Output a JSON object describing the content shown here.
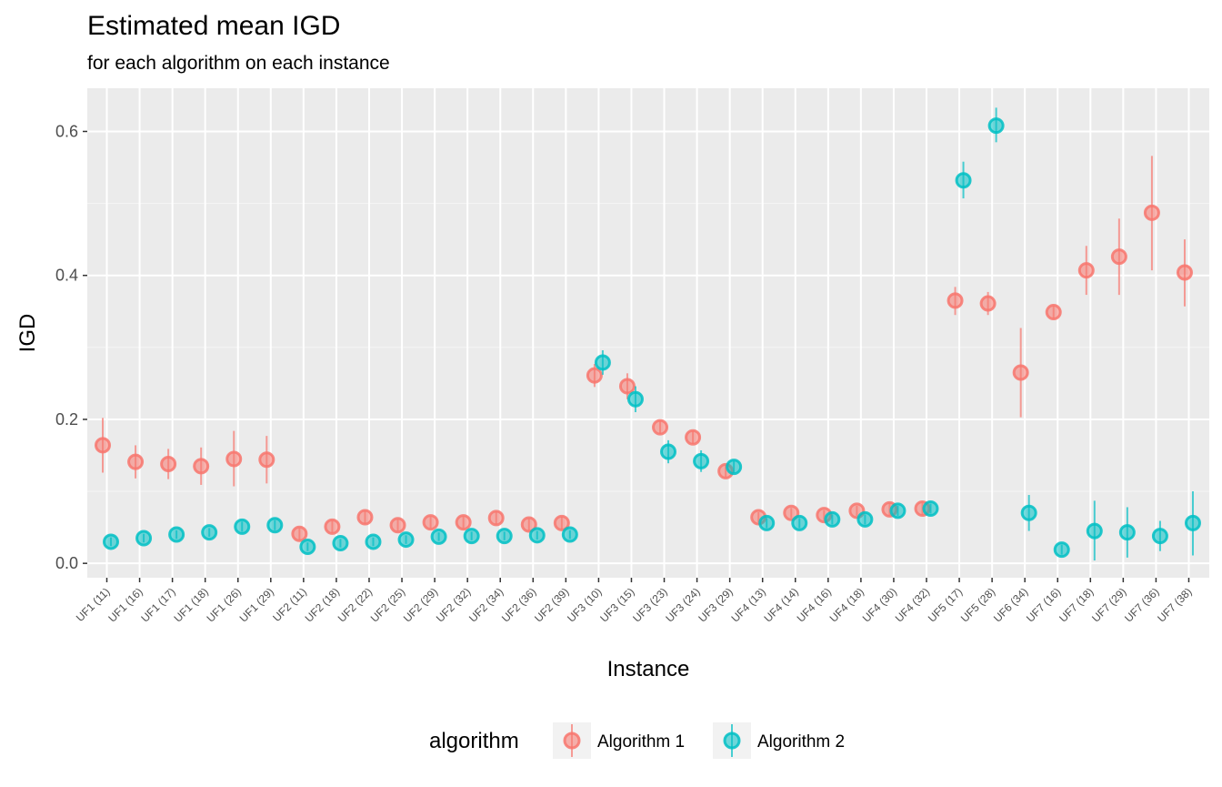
{
  "chart_data": {
    "type": "scatter",
    "title": "Estimated mean IGD",
    "subtitle": "for each algorithm on each instance",
    "xlabel": "Instance",
    "ylabel": "IGD",
    "ylim": [
      -0.02,
      0.66
    ],
    "yticks": [
      0.0,
      0.2,
      0.4,
      0.6
    ],
    "ytick_labels": [
      "0.0",
      "0.2",
      "0.4",
      "0.6"
    ],
    "grid": true,
    "legend": {
      "title": "algorithm",
      "position": "bottom"
    },
    "categories": [
      "UF1 (11)",
      "UF1 (16)",
      "UF1 (17)",
      "UF1 (18)",
      "UF1 (26)",
      "UF1 (29)",
      "UF2 (11)",
      "UF2 (18)",
      "UF2 (22)",
      "UF2 (25)",
      "UF2 (29)",
      "UF2 (32)",
      "UF2 (34)",
      "UF2 (36)",
      "UF2 (39)",
      "UF3 (10)",
      "UF3 (15)",
      "UF3 (23)",
      "UF3 (24)",
      "UF3 (29)",
      "UF4 (13)",
      "UF4 (14)",
      "UF4 (16)",
      "UF4 (18)",
      "UF4 (30)",
      "UF4 (32)",
      "UF5 (17)",
      "UF5 (28)",
      "UF6 (34)",
      "UF7 (16)",
      "UF7 (18)",
      "UF7 (29)",
      "UF7 (36)",
      "UF7 (38)"
    ],
    "series": [
      {
        "name": "Algorithm 1",
        "color": "#F8766D",
        "values": [
          0.164,
          0.141,
          0.138,
          0.135,
          0.145,
          0.144,
          0.041,
          0.051,
          0.064,
          0.053,
          0.057,
          0.057,
          0.063,
          0.054,
          0.056,
          0.261,
          0.246,
          0.189,
          0.175,
          0.128,
          0.064,
          0.07,
          0.067,
          0.073,
          0.075,
          0.076,
          0.365,
          0.361,
          0.265,
          0.349,
          0.407,
          0.426,
          0.487,
          0.404
        ],
        "lower": [
          0.126,
          0.118,
          0.117,
          0.109,
          0.107,
          0.111,
          0.033,
          0.043,
          0.055,
          0.045,
          0.049,
          0.049,
          0.054,
          0.046,
          0.047,
          0.245,
          0.228,
          0.18,
          0.166,
          0.12,
          0.057,
          0.063,
          0.06,
          0.066,
          0.067,
          0.068,
          0.345,
          0.345,
          0.203,
          0.34,
          0.373,
          0.373,
          0.407,
          0.357
        ],
        "upper": [
          0.202,
          0.164,
          0.159,
          0.161,
          0.184,
          0.177,
          0.049,
          0.059,
          0.073,
          0.061,
          0.065,
          0.065,
          0.072,
          0.062,
          0.065,
          0.277,
          0.264,
          0.198,
          0.184,
          0.136,
          0.071,
          0.077,
          0.074,
          0.08,
          0.083,
          0.084,
          0.384,
          0.377,
          0.327,
          0.358,
          0.441,
          0.479,
          0.566,
          0.45
        ]
      },
      {
        "name": "Algorithm 2",
        "color": "#00BFC4",
        "values": [
          0.03,
          0.035,
          0.04,
          0.043,
          0.051,
          0.053,
          0.023,
          0.028,
          0.03,
          0.033,
          0.037,
          0.038,
          0.038,
          0.039,
          0.04,
          0.279,
          0.228,
          0.155,
          0.142,
          0.134,
          0.056,
          0.056,
          0.061,
          0.061,
          0.073,
          0.076,
          0.532,
          0.608,
          0.07,
          0.019,
          0.045,
          0.043,
          0.038,
          0.056
        ],
        "lower": [
          0.024,
          0.029,
          0.034,
          0.037,
          0.044,
          0.046,
          0.017,
          0.022,
          0.024,
          0.027,
          0.031,
          0.032,
          0.032,
          0.033,
          0.034,
          0.262,
          0.21,
          0.139,
          0.127,
          0.126,
          0.049,
          0.049,
          0.054,
          0.054,
          0.066,
          0.069,
          0.507,
          0.585,
          0.045,
          0.012,
          0.004,
          0.008,
          0.017,
          0.011
        ],
        "upper": [
          0.036,
          0.041,
          0.046,
          0.049,
          0.058,
          0.06,
          0.029,
          0.034,
          0.036,
          0.039,
          0.043,
          0.044,
          0.044,
          0.045,
          0.046,
          0.296,
          0.246,
          0.171,
          0.157,
          0.142,
          0.063,
          0.063,
          0.068,
          0.068,
          0.08,
          0.083,
          0.558,
          0.633,
          0.095,
          0.026,
          0.087,
          0.078,
          0.059,
          0.1
        ]
      }
    ]
  }
}
